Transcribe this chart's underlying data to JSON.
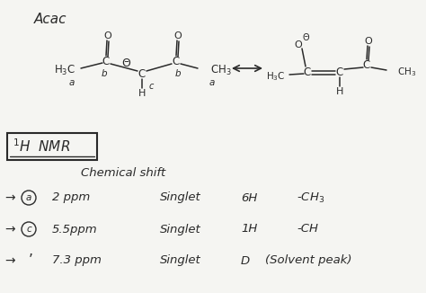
{
  "background_color": "#f5f5f2",
  "font_color": "#2a2a2a",
  "title": "Acac",
  "nmr_rows": [
    {
      "circle": "a",
      "ppm": "2 ppm",
      "mult": "Singlet",
      "nh": "6H",
      "assign": "-CH₃"
    },
    {
      "circle": "c",
      "ppm": "5.5ppm",
      "mult": "Singlet",
      "nh": "1H",
      "assign": "-CH"
    },
    {
      "circle": "",
      "ppm": "7.3 ppm",
      "mult": "Singlet",
      "nh": "D",
      "assign": "(Solvent peak)"
    }
  ]
}
